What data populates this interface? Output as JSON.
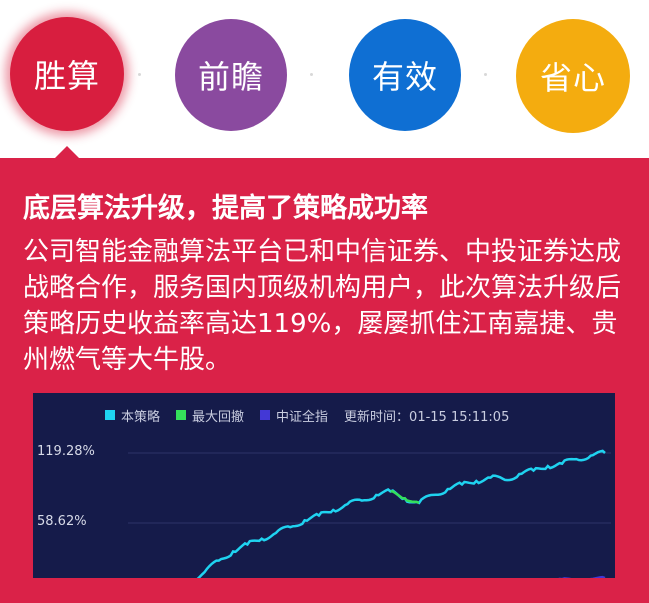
{
  "features": [
    {
      "label": "胜算",
      "color": "#d81e3f"
    },
    {
      "label": "前瞻",
      "color": "#8a4a9f"
    },
    {
      "label": "有效",
      "color": "#0f6fd3"
    },
    {
      "label": "省心",
      "color": "#f4ac0f"
    }
  ],
  "panel": {
    "headline": "底层算法升级，提高了策略成功率",
    "description": "公司智能金融算法平台已和中信证券、中投证券达成战略合作，服务国内顶级机构用户，此次算法升级后策略历史收益率高达119%，屡屡抓住江南嘉捷、贵州燃气等大牛股。",
    "background": "#da2248"
  },
  "chart_data": {
    "type": "line",
    "legend": [
      "本策略",
      "最大回撤",
      "中证全指"
    ],
    "legend_colors": [
      "#1fd3f0",
      "#35e05b",
      "#4338d6"
    ],
    "update_text": "更新时间：01-15 15:11:05",
    "y_ticks": [
      "119.28%",
      "58.62%"
    ],
    "y_tick_values": [
      119.28,
      58.62
    ],
    "ylim": [
      0,
      140
    ],
    "series": [
      {
        "name": "本策略",
        "values": [
          0,
          1,
          2,
          4,
          8,
          16,
          26,
          34,
          40,
          45,
          50,
          55,
          61,
          65,
          70,
          75,
          78,
          83,
          86,
          80,
          76,
          83,
          88,
          92,
          95,
          98,
          96,
          101,
          104,
          108,
          110,
          114,
          117,
          119.28
        ]
      },
      {
        "name": "最大回撤",
        "values": [
          86,
          80,
          76
        ]
      },
      {
        "name": "中证全指",
        "values": [
          -2,
          -1,
          0,
          1,
          3,
          4,
          5,
          4,
          3,
          4,
          2,
          3,
          3,
          4,
          5,
          5,
          6,
          7,
          5,
          6,
          7,
          4,
          5,
          6,
          7,
          8,
          7,
          9,
          8,
          9,
          10,
          9,
          10,
          11
        ]
      }
    ]
  }
}
